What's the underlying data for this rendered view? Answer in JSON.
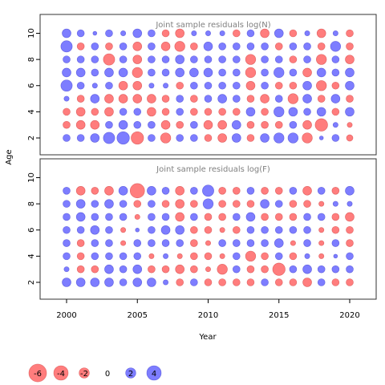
{
  "chart_data": {
    "type": "scatter",
    "encoding": "bubble",
    "xlabel": "Year",
    "ylabel": "Age",
    "x_ticks": [
      2000,
      2005,
      2010,
      2015,
      2020
    ],
    "y_ticks": [
      2,
      4,
      6,
      8,
      10
    ],
    "xlim": [
      1998,
      2022
    ],
    "ylim": [
      1,
      11
    ],
    "years": [
      2000,
      2001,
      2002,
      2003,
      2004,
      2005,
      2006,
      2007,
      2008,
      2009,
      2010,
      2011,
      2012,
      2013,
      2014,
      2015,
      2016,
      2017,
      2018,
      2019,
      2020
    ],
    "ages": [
      2,
      3,
      4,
      5,
      6,
      7,
      8,
      9,
      10
    ],
    "colors": {
      "positive": "#6666ff",
      "negative": "#ff6666",
      "positive_stroke": "#3333cc",
      "negative_stroke": "#cc3333"
    },
    "panels": [
      {
        "title": "Joint sample residuals log(N)",
        "residuals_by_age": {
          "2": [
            1.0,
            1.0,
            1.5,
            2.5,
            3.0,
            -3.0,
            1.0,
            -2.0,
            1.0,
            1.0,
            -1.0,
            -1.5,
            1.5,
            -1.0,
            1.5,
            2.0,
            2.0,
            -2.0,
            0.3,
            1.0,
            -0.8
          ],
          "3": [
            -1.0,
            -1.5,
            -1.5,
            1.0,
            1.5,
            1.0,
            1.0,
            -1.5,
            -1.0,
            1.0,
            -1.5,
            -1.5,
            1.5,
            -1.0,
            -1.0,
            -1.0,
            1.0,
            -1.5,
            -3.0,
            0.5,
            -0.5
          ],
          "4": [
            -1.0,
            -1.5,
            -1.0,
            -1.5,
            1.0,
            1.0,
            -1.5,
            -1.0,
            1.0,
            -1.0,
            -1.0,
            -1.0,
            -1.0,
            1.5,
            -1.0,
            2.0,
            1.5,
            1.0,
            1.5,
            -1.0,
            1.5
          ],
          "5": [
            0.5,
            -1.0,
            1.5,
            -1.5,
            -1.5,
            -1.5,
            -1.5,
            -1.0,
            1.0,
            -1.0,
            1.0,
            1.5,
            1.0,
            -1.0,
            -1.5,
            1.0,
            -2.0,
            1.5,
            -1.0,
            1.5,
            -1.0
          ],
          "6": [
            2.5,
            1.0,
            0.5,
            1.0,
            -1.5,
            -1.5,
            0.5,
            0.5,
            -1.0,
            1.0,
            1.0,
            1.0,
            1.0,
            -1.5,
            1.0,
            -1.0,
            -1.0,
            1.5,
            -2.0,
            -1.0,
            1.5
          ],
          "7": [
            1.5,
            1.5,
            1.0,
            1.5,
            1.5,
            -2.0,
            1.0,
            1.0,
            1.5,
            1.5,
            1.5,
            1.0,
            1.0,
            -2.0,
            1.0,
            2.0,
            1.0,
            -1.5,
            1.5,
            1.0,
            1.5
          ],
          "8": [
            1.0,
            1.0,
            1.0,
            -2.5,
            1.0,
            -1.5,
            1.0,
            1.0,
            1.5,
            1.0,
            1.0,
            1.0,
            1.0,
            -2.0,
            1.0,
            1.0,
            -1.0,
            1.0,
            -2.0,
            1.0,
            -1.5
          ],
          "9": [
            2.5,
            -1.0,
            1.0,
            -1.0,
            1.0,
            -1.5,
            1.0,
            -1.5,
            -2.0,
            -1.0,
            1.5,
            1.0,
            1.0,
            1.0,
            1.0,
            -1.0,
            1.0,
            1.0,
            -1.0,
            2.0,
            -1.0
          ],
          "10": [
            1.5,
            1.0,
            0.3,
            1.0,
            0.5,
            1.5,
            1.0,
            -1.0,
            -1.5,
            0.5,
            0.5,
            0.5,
            -1.0,
            1.0,
            -1.5,
            1.5,
            -1.0,
            0.5,
            -1.5,
            0.5,
            -1.0
          ]
        }
      },
      {
        "title": "Joint sample residuals log(F)",
        "residuals_by_age": {
          "2": [
            1.5,
            1.5,
            1.5,
            1.5,
            1.0,
            1.5,
            1.5,
            0.5,
            -1.0,
            1.0,
            -1.0,
            -1.0,
            -1.0,
            -1.0,
            1.0,
            -1.0,
            -1.0,
            -1.5,
            1.0,
            -1.0,
            -1.0
          ],
          "3": [
            0.5,
            -1.0,
            -1.0,
            1.5,
            1.0,
            1.5,
            -1.0,
            -1.0,
            -1.5,
            -1.0,
            -0.5,
            -2.0,
            1.0,
            -1.0,
            -1.0,
            -3.0,
            1.0,
            1.5,
            1.0,
            1.0,
            1.0
          ],
          "4": [
            1.0,
            -1.0,
            1.0,
            1.0,
            1.0,
            1.0,
            -0.5,
            0.5,
            -0.5,
            -1.0,
            -1.0,
            -0.5,
            1.0,
            -2.0,
            -1.0,
            1.0,
            -1.0,
            0.5,
            -0.5,
            0.3,
            1.0
          ],
          "5": [
            1.0,
            -1.0,
            1.0,
            1.0,
            -0.5,
            1.0,
            1.0,
            1.0,
            1.0,
            -1.0,
            -0.5,
            1.0,
            1.0,
            1.0,
            1.0,
            1.5,
            -0.5,
            1.0,
            -0.5,
            1.0,
            -1.0
          ],
          "6": [
            1.0,
            1.0,
            1.5,
            1.0,
            -0.5,
            0.3,
            1.0,
            1.5,
            1.5,
            -1.0,
            -1.0,
            -0.5,
            -1.0,
            1.0,
            1.0,
            1.0,
            1.0,
            1.0,
            -0.5,
            -1.0,
            -1.0
          ],
          "7": [
            1.0,
            1.5,
            1.0,
            1.0,
            1.0,
            -0.5,
            1.0,
            1.0,
            -1.5,
            1.0,
            -1.0,
            -1.0,
            1.0,
            1.5,
            -1.0,
            -1.0,
            -1.0,
            1.0,
            1.0,
            -1.0,
            -1.5
          ],
          "8": [
            1.0,
            1.5,
            1.0,
            1.5,
            1.0,
            -1.0,
            1.0,
            -1.0,
            -1.5,
            -1.0,
            2.0,
            -1.0,
            -1.0,
            -1.0,
            1.5,
            1.0,
            -1.0,
            -1.0,
            -0.5,
            0.5,
            0.5
          ],
          "9": [
            1.0,
            -1.5,
            -1.0,
            -1.5,
            1.5,
            -4.0,
            1.5,
            1.0,
            -1.5,
            1.0,
            2.5,
            -1.0,
            -1.0,
            1.0,
            -1.0,
            -1.0,
            1.0,
            -1.5,
            1.0,
            -1.0,
            1.5
          ],
          "10": []
        }
      }
    ],
    "legend": {
      "placement": "bottom-left",
      "entries": [
        {
          "label": "-6",
          "value": -6
        },
        {
          "label": "-4",
          "value": -4
        },
        {
          "label": "-2",
          "value": -2
        },
        {
          "label": "0",
          "value": 0
        },
        {
          "label": "2",
          "value": 2
        },
        {
          "label": "4",
          "value": 4
        }
      ]
    }
  }
}
